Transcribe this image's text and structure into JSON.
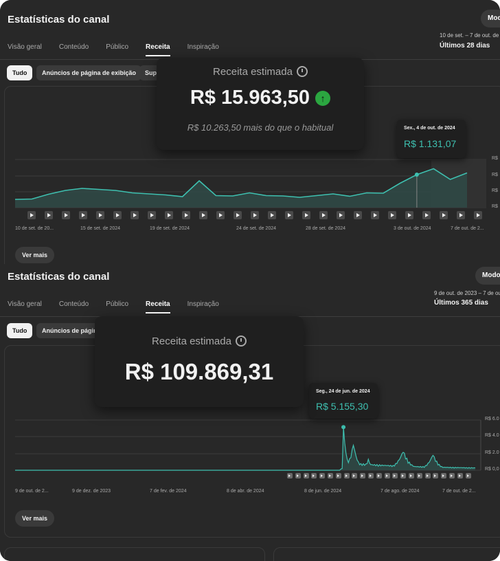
{
  "panel1": {
    "title": "Estatísticas do canal",
    "mode_label": "Modo",
    "tabs": [
      "Visão geral",
      "Conteúdo",
      "Público",
      "Receita",
      "Inspiração"
    ],
    "active_tab": "Receita",
    "date_range": "10 de set. – 7 de out. de 2",
    "period": "Últimos 28 dias",
    "chips": [
      "Tudo",
      "Anúncios de página de exibição",
      "Sup"
    ],
    "metric": {
      "label": "Receita estimada",
      "value": "R$ 15.963,50",
      "comparison": "R$ 10.263,50 mais do que o habitual",
      "trend": "up"
    },
    "tooltip": {
      "date": "Sex., 4 de out. de 2024",
      "value": "R$ 1.131,07"
    },
    "more_label": "Ver mais",
    "y_ticks": [
      "R$",
      "R$",
      "R$",
      "R$"
    ],
    "x_ticks": [
      "10 de set. de 20...",
      "15 de set. de 2024",
      "19 de set. de 2024",
      "24 de set. de 2024",
      "28 de set. de 2024",
      "3 de out. de 2024",
      "7 de out. de 2..."
    ]
  },
  "panel2": {
    "title": "Estatísticas do canal",
    "mode_label": "Modo",
    "tabs": [
      "Visão geral",
      "Conteúdo",
      "Público",
      "Receita",
      "Inspiração"
    ],
    "active_tab": "Receita",
    "date_range": "9 de out. de 2023 – 7 de out",
    "period": "Últimos 365 dias",
    "chips": [
      "Tudo",
      "Anúncios de página"
    ],
    "metric": {
      "label": "Receita estimada",
      "value": "R$ 109.869,31"
    },
    "tooltip": {
      "date": "Seg., 24 de jun. de 2024",
      "value": "R$ 5.155,30"
    },
    "more_label": "Ver mais",
    "y_ticks": [
      "R$ 6.0",
      "R$ 4.0",
      "R$ 2.0",
      "R$ 0,0"
    ],
    "x_ticks": [
      "9 de out. de 2...",
      "9 de dez. de 2023",
      "7 de fev. de 2024",
      "8 de abr. de 2024",
      "8 de jun. de 2024",
      "7 de ago. de 2024",
      "7 de out. de 2..."
    ]
  },
  "colors": {
    "line": "#3ec0b0",
    "area": "#2f4a47",
    "up": "#2ba640",
    "background": "#282828"
  },
  "icons": {
    "trend_up": "arrow-up-icon",
    "info": "clock-icon",
    "video_marker": "play-icon"
  },
  "chart_data": [
    {
      "type": "area",
      "title": "Receita estimada",
      "x": [
        "10 set",
        "11 set",
        "12 set",
        "13 set",
        "14 set",
        "15 set",
        "16 set",
        "17 set",
        "18 set",
        "19 set",
        "20 set",
        "21 set",
        "22 set",
        "23 set",
        "24 set",
        "25 set",
        "26 set",
        "27 set",
        "28 set",
        "29 set",
        "30 set",
        "1 out",
        "2 out",
        "3 out",
        "4 out",
        "5 out",
        "6 out",
        "7 out"
      ],
      "values": [
        240,
        250,
        390,
        500,
        560,
        530,
        500,
        430,
        400,
        370,
        320,
        780,
        350,
        340,
        430,
        350,
        340,
        300,
        350,
        400,
        330,
        430,
        420,
        710,
        960,
        1131,
        820,
        1010
      ],
      "highlight": {
        "x": "4 out",
        "value": 1131.07
      },
      "grid": true
    },
    {
      "type": "area",
      "title": "Receita estimada",
      "x_range": [
        "9 de out. de 2023",
        "7 de out. de 2024"
      ],
      "values": [
        0,
        0,
        0,
        0,
        0,
        0,
        0,
        0,
        0,
        0,
        0,
        0,
        0,
        0,
        0,
        0,
        0,
        0,
        0,
        0,
        0,
        0,
        0,
        0,
        0,
        0,
        0,
        0,
        0,
        0,
        0,
        0,
        0,
        0,
        0,
        0,
        0,
        0,
        0,
        0,
        0,
        0,
        0,
        0,
        0,
        0,
        0,
        0,
        0,
        0,
        0,
        0,
        0,
        0,
        0,
        0,
        0,
        0,
        0,
        0,
        0,
        0,
        0,
        0,
        0,
        0,
        0,
        0,
        0,
        0,
        0,
        0,
        0,
        0,
        0,
        0,
        0,
        0,
        0,
        0,
        0,
        0,
        0,
        0,
        0,
        0,
        0,
        0,
        0,
        0,
        0,
        0,
        0,
        0,
        0,
        0,
        0,
        0,
        0,
        0,
        0,
        0,
        0,
        0,
        0,
        0,
        0,
        0,
        0,
        0,
        0,
        0,
        0,
        0,
        0,
        0,
        0,
        0,
        0,
        0,
        0,
        0,
        0,
        0,
        0,
        0,
        0,
        0,
        0,
        0,
        0,
        0,
        0,
        0,
        0,
        0,
        0,
        0,
        0,
        0,
        0,
        0,
        0,
        0,
        0,
        0,
        0,
        0,
        0,
        0,
        0,
        0,
        0,
        0,
        0,
        0,
        0,
        0,
        0,
        0,
        0,
        0,
        0,
        0,
        0,
        0,
        0,
        0,
        0,
        0,
        0,
        0,
        0,
        0,
        0,
        0,
        0,
        0,
        0,
        0,
        0,
        0,
        0,
        0,
        0,
        0,
        0,
        0,
        0,
        0,
        0,
        0,
        0,
        0,
        0,
        0,
        0,
        0,
        0,
        0,
        0,
        0,
        0,
        0,
        0,
        0,
        0,
        0,
        0,
        0,
        0,
        0,
        0,
        0,
        0,
        0,
        0,
        0,
        0,
        0,
        0,
        0,
        0,
        0,
        0,
        0,
        0,
        0,
        0,
        0,
        0,
        0,
        0,
        0,
        0,
        0,
        0,
        0,
        0,
        0,
        0,
        0,
        0,
        0,
        0,
        0,
        0,
        0,
        0,
        0,
        0,
        0,
        0,
        0,
        0,
        0,
        0,
        0,
        0,
        0,
        0,
        0,
        0,
        0,
        0,
        0,
        0,
        0,
        0,
        0,
        0,
        0,
        0,
        0,
        0,
        0,
        0,
        0,
        0,
        0,
        0,
        0,
        0,
        0,
        0,
        0,
        0,
        0,
        0,
        0,
        0,
        0,
        0,
        0,
        0,
        0,
        0,
        0,
        0,
        0,
        0,
        0,
        0,
        0,
        0,
        0,
        0,
        0,
        0,
        0,
        0,
        0,
        0,
        0,
        0,
        0,
        0,
        0,
        0,
        0,
        0,
        0,
        0,
        0,
        0,
        0,
        0,
        0,
        0,
        0,
        0,
        0,
        0,
        0,
        0,
        0,
        0,
        0,
        0,
        0,
        0,
        0,
        0,
        0,
        0,
        0,
        0,
        0,
        0,
        0,
        0,
        0,
        0,
        0,
        0,
        0,
        0,
        0,
        0,
        0,
        0,
        0,
        0,
        0,
        0,
        0,
        0,
        0,
        0,
        0,
        0
      ],
      "peaks": [
        {
          "date": "24 de jun. de 2024",
          "value": 5155.3
        },
        {
          "date": "jul. de 2024",
          "value": 3000
        },
        {
          "date": "ago. de 2024",
          "value": 2200
        },
        {
          "date": "set. de 2024",
          "value": 1800
        }
      ],
      "ylim": [
        0,
        6000
      ],
      "grid": true
    }
  ]
}
